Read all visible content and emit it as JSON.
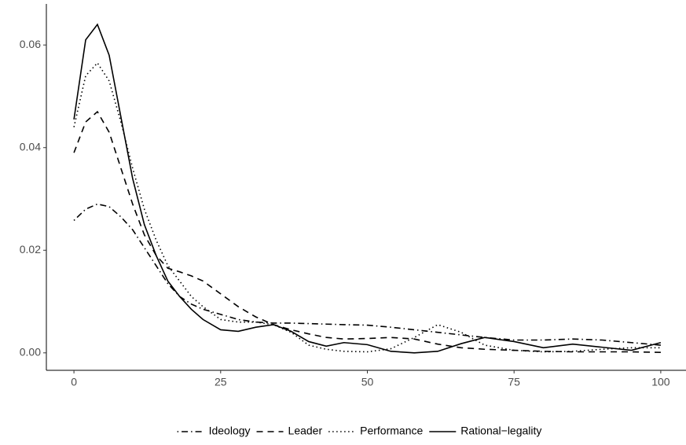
{
  "chart_data": {
    "type": "line",
    "x": [
      0,
      2,
      4,
      6,
      8,
      10,
      12,
      14,
      16,
      18,
      20,
      22,
      25,
      28,
      31,
      34,
      37,
      40,
      43,
      46,
      50,
      54,
      58,
      62,
      66,
      70,
      75,
      80,
      85,
      90,
      95,
      100
    ],
    "series": [
      {
        "name": "Ideology",
        "color": "#000000",
        "dash": "dotdash",
        "values": [
          0.0258,
          0.028,
          0.029,
          0.0285,
          0.0265,
          0.024,
          0.0205,
          0.017,
          0.0135,
          0.011,
          0.0095,
          0.0085,
          0.0075,
          0.0065,
          0.006,
          0.0058,
          0.0058,
          0.0057,
          0.0056,
          0.0055,
          0.0054,
          0.005,
          0.0045,
          0.004,
          0.0035,
          0.003,
          0.0025,
          0.0025,
          0.0027,
          0.0025,
          0.002,
          0.0015
        ]
      },
      {
        "name": "Leader",
        "color": "#000000",
        "dash": "dashed",
        "values": [
          0.039,
          0.045,
          0.047,
          0.043,
          0.036,
          0.029,
          0.023,
          0.019,
          0.0165,
          0.0158,
          0.015,
          0.014,
          0.0115,
          0.009,
          0.007,
          0.0055,
          0.0045,
          0.0037,
          0.003,
          0.0027,
          0.0028,
          0.003,
          0.0027,
          0.0017,
          0.001,
          0.0007,
          0.0005,
          0.0003,
          0.0002,
          0.0002,
          0.0002,
          0.0001
        ]
      },
      {
        "name": "Performance",
        "color": "#000000",
        "dash": "dotted",
        "values": [
          0.044,
          0.054,
          0.0565,
          0.053,
          0.045,
          0.036,
          0.028,
          0.022,
          0.017,
          0.014,
          0.011,
          0.009,
          0.0065,
          0.006,
          0.006,
          0.0055,
          0.004,
          0.0015,
          0.0007,
          0.0003,
          0.0002,
          0.0008,
          0.003,
          0.0055,
          0.004,
          0.0015,
          0.0005,
          0.0002,
          0.0003,
          0.0007,
          0.001,
          0.001
        ]
      },
      {
        "name": "Rational−legality",
        "color": "#000000",
        "dash": "solid",
        "values": [
          0.0455,
          0.061,
          0.064,
          0.058,
          0.046,
          0.034,
          0.025,
          0.019,
          0.014,
          0.011,
          0.0085,
          0.0065,
          0.0045,
          0.0042,
          0.005,
          0.0055,
          0.0042,
          0.0022,
          0.0013,
          0.002,
          0.0016,
          0.0003,
          0.0,
          0.0003,
          0.0018,
          0.003,
          0.0022,
          0.001,
          0.0017,
          0.0011,
          0.0005,
          0.002
        ]
      }
    ],
    "xlim": [
      -4.7,
      104.3
    ],
    "xticks": [
      0,
      25,
      50,
      75,
      100
    ],
    "ylim": [
      -0.0034,
      0.068
    ],
    "yticks": [
      {
        "value": 0,
        "label": "0.00"
      },
      0.02,
      0.04,
      0.06
    ],
    "grid": false,
    "legend": "bottom"
  }
}
